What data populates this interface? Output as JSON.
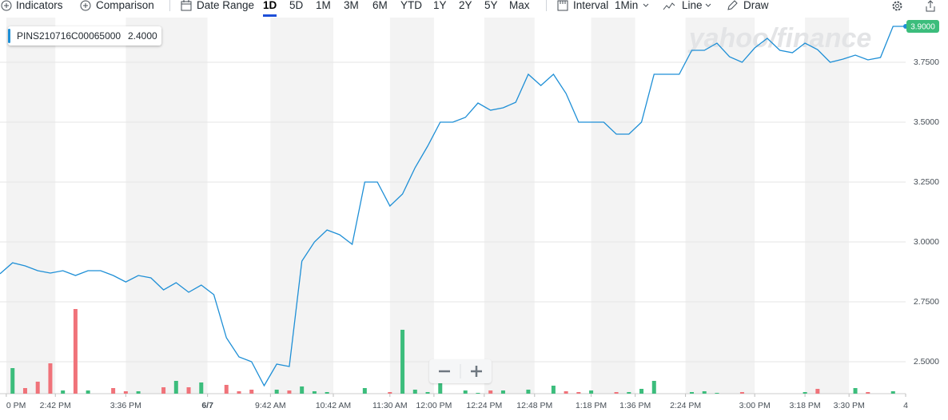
{
  "toolbar": {
    "indicators": "Indicators",
    "comparison": "Comparison",
    "date_range": "Date Range",
    "ranges": [
      "1D",
      "5D",
      "1M",
      "3M",
      "6M",
      "YTD",
      "1Y",
      "2Y",
      "5Y",
      "Max"
    ],
    "selected_range": 0,
    "interval": "Interval",
    "interval_value": "1Min",
    "chart_type": "Line",
    "draw": "Draw"
  },
  "chart_data": {
    "type": "line",
    "symbol": "PINS210716C00065000",
    "symbol_value": "2.4000",
    "watermark": "yahoo/finance",
    "color": "#1e8fd6",
    "up_color": "#3cbd7c",
    "down_color": "#f0737a",
    "shade_color": "#f3f3f3",
    "grid": true,
    "values": [
      2.867,
      2.913,
      2.9,
      2.88,
      2.87,
      2.88,
      2.86,
      2.88,
      2.88,
      2.86,
      2.833,
      2.86,
      2.85,
      2.8,
      2.83,
      2.79,
      2.82,
      2.78,
      2.6,
      2.52,
      2.5,
      2.4,
      2.49,
      2.48,
      2.92,
      3.0,
      3.05,
      3.03,
      2.99,
      3.25,
      3.25,
      3.15,
      3.2,
      3.31,
      3.4,
      3.5,
      3.5,
      3.52,
      3.58,
      3.55,
      3.56,
      3.583,
      3.7,
      3.653,
      3.7,
      3.62,
      3.5,
      3.5,
      3.5,
      3.45,
      3.45,
      3.5,
      3.7,
      3.7,
      3.7,
      3.8,
      3.8,
      3.83,
      3.773,
      3.75,
      3.81,
      3.85,
      3.8,
      3.79,
      3.83,
      3.803,
      3.75,
      3.763,
      3.78,
      3.76,
      3.77,
      3.9,
      3.9
    ],
    "volume": [
      null,
      32,
      7,
      15,
      38,
      4,
      106,
      4,
      null,
      7,
      3,
      3,
      null,
      8,
      16,
      8,
      14,
      null,
      11,
      3,
      5,
      null,
      5,
      4,
      9,
      3,
      2,
      null,
      null,
      7,
      null,
      2,
      80,
      5,
      2,
      14,
      null,
      4,
      1,
      4,
      4,
      null,
      5,
      null,
      10,
      3,
      2,
      4,
      null,
      2,
      2,
      6,
      16,
      null,
      null,
      2,
      3,
      1,
      null,
      2,
      null,
      null,
      null,
      null,
      2,
      6,
      null,
      null,
      7,
      2,
      null,
      3,
      null
    ],
    "last_label": {
      "value": 3.9,
      "label": "3.9000"
    },
    "xlim": [
      0,
      72
    ],
    "xticks": [
      {
        "value": 0.5,
        "label": "0 PM"
      },
      {
        "value": 4.4,
        "label": "2:42 PM"
      },
      {
        "value": 10,
        "label": "3:36 PM"
      },
      {
        "value": 16.5,
        "label": "6/7"
      },
      {
        "value": 21.5,
        "label": "9:42 AM"
      },
      {
        "value": 26.5,
        "label": "10:42 AM"
      },
      {
        "value": 31,
        "label": "11:30 AM"
      },
      {
        "value": 34.5,
        "label": "12:00 PM"
      },
      {
        "value": 38.5,
        "label": "12:24 PM"
      },
      {
        "value": 42.5,
        "label": "12:48 PM"
      },
      {
        "value": 47,
        "label": "1:18 PM"
      },
      {
        "value": 50.5,
        "label": "1:36 PM"
      },
      {
        "value": 54.5,
        "label": "2:24 PM"
      },
      {
        "value": 60,
        "label": "3:00 PM"
      },
      {
        "value": 64,
        "label": "3:18 PM"
      },
      {
        "value": 67.5,
        "label": "3:30 PM"
      },
      {
        "value": 72,
        "label": "4"
      }
    ],
    "ylim": [
      2.3667,
      3.9367
    ],
    "yticks": [
      {
        "value": 2.5,
        "label": "2.5000"
      },
      {
        "value": 2.75,
        "label": "2.7500"
      },
      {
        "value": 3.0,
        "label": "3.0000"
      },
      {
        "value": 3.25,
        "label": "3.2500"
      },
      {
        "value": 3.5,
        "label": "3.5000"
      },
      {
        "value": 3.75,
        "label": "3.7500"
      }
    ]
  }
}
